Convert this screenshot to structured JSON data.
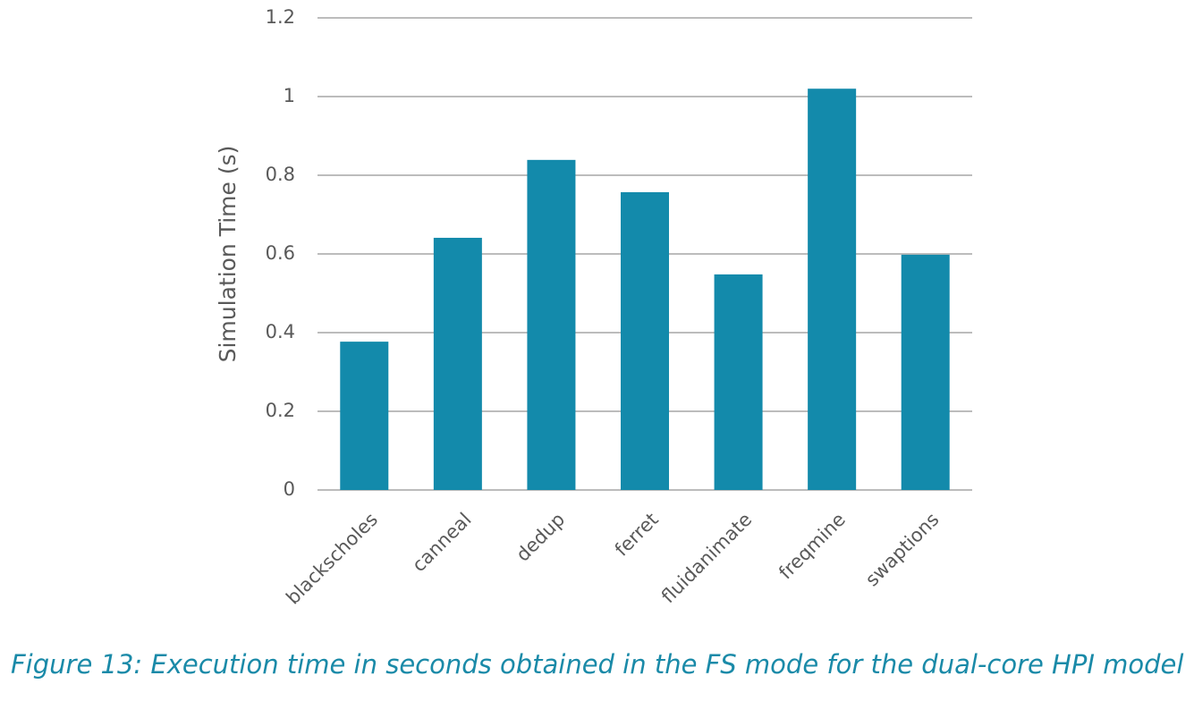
{
  "chart_data": {
    "type": "bar",
    "y_label": "Simulation Time (s)",
    "caption": "Figure 13: Execution time in seconds obtained in the FS mode for the dual-core HPI model",
    "categories": [
      "blackscholes",
      "canneal",
      "dedup",
      "ferret",
      "fluidanimate",
      "freqmine",
      "swaptions"
    ],
    "values": [
      0.377,
      0.641,
      0.839,
      0.757,
      0.548,
      1.02,
      0.598
    ],
    "color": "#138aab",
    "ylim": [
      0,
      1.2
    ],
    "yticks": [
      0,
      0.2,
      0.4,
      0.6,
      0.8,
      1,
      1.2
    ],
    "grid": true
  }
}
